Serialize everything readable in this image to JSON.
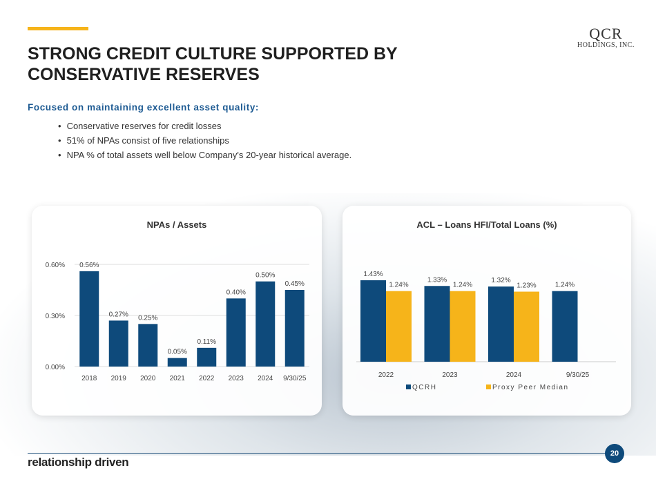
{
  "header": {
    "title": "STRONG CREDIT CULTURE SUPPORTED BY CONSERVATIVE RESERVES",
    "logo_main": "QCR",
    "logo_sub": "HOLDINGS, INC."
  },
  "subtitle": "Focused on maintaining excellent asset quality:",
  "bullets": [
    "Conservative reserves for credit losses",
    "51% of NPAs consist of five relationships",
    "NPA % of total assets well below Company's 20-year historical average."
  ],
  "footer": {
    "brand": "relationship driven",
    "page": "20"
  },
  "colors": {
    "navy": "#0e4a7b",
    "gold": "#f6b41a"
  },
  "chart_data": [
    {
      "type": "bar",
      "title": "NPAs / Assets",
      "categories": [
        "2018",
        "2019",
        "2020",
        "2021",
        "2022",
        "2023",
        "2024",
        "9/30/25"
      ],
      "values": [
        0.56,
        0.27,
        0.25,
        0.05,
        0.11,
        0.4,
        0.5,
        0.45
      ],
      "labels": [
        "0.56%",
        "0.27%",
        "0.25%",
        "0.05%",
        "0.11%",
        "0.40%",
        "0.50%",
        "0.45%"
      ],
      "yticks": [
        "0.00%",
        "0.30%",
        "0.60%"
      ],
      "ytick_values": [
        0,
        0.3,
        0.6
      ],
      "ylim": [
        0,
        0.6
      ],
      "grid": true
    },
    {
      "type": "bar",
      "title": "ACL – Loans HFI/Total Loans (%)",
      "categories": [
        "2022",
        "2023",
        "2024",
        "9/30/25"
      ],
      "series": [
        {
          "name": "QCRH",
          "values": [
            1.43,
            1.33,
            1.32,
            1.24
          ],
          "labels": [
            "1.43%",
            "1.33%",
            "1.32%",
            "1.24%"
          ]
        },
        {
          "name": "Proxy Peer Median",
          "values": [
            1.24,
            1.24,
            1.23,
            null
          ],
          "labels": [
            "1.24%",
            "1.24%",
            "1.23%",
            null
          ]
        }
      ],
      "ylim": [
        0,
        1.43
      ],
      "legend": "bottom"
    }
  ]
}
